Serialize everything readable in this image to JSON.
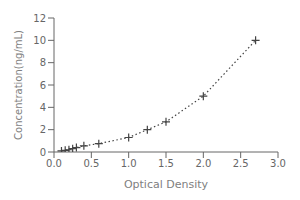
{
  "chart_data": {
    "type": "line",
    "x": [
      0.1,
      0.15,
      0.2,
      0.25,
      0.3,
      0.4,
      0.6,
      1.0,
      1.25,
      1.5,
      2.0,
      2.7
    ],
    "values": [
      0.1,
      0.15,
      0.2,
      0.3,
      0.4,
      0.55,
      0.75,
      1.3,
      2.0,
      2.7,
      5.0,
      10.0
    ],
    "xlabel": "Optical Density",
    "ylabel": "Concentration(ng/mL)",
    "xlim": [
      0,
      3
    ],
    "ylim": [
      0,
      12
    ],
    "xticks": [
      {
        "value": 0,
        "label": "0.0"
      },
      0.5,
      {
        "value": 1,
        "label": "1.0"
      },
      1.5,
      {
        "value": 2,
        "label": "2.0"
      },
      2.5,
      {
        "value": 3,
        "label": "3.0"
      }
    ],
    "yticks": [
      0,
      2,
      4,
      6,
      8,
      10,
      12
    ],
    "color": "#444444",
    "marker": "+",
    "line_style": "dotted",
    "grid": false
  }
}
